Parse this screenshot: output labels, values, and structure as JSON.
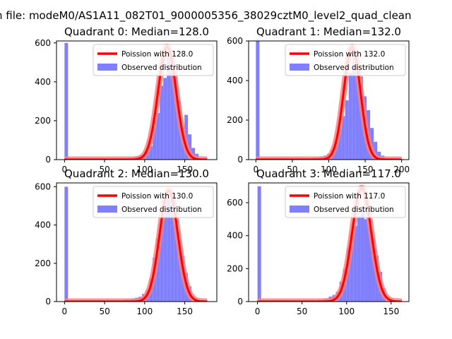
{
  "figure": {
    "suptitle": "n file: modeM0/AS1A11_082T01_9000005356_38029cztM0_level2_quad_clean"
  },
  "chart_data": [
    {
      "type": "bar",
      "title": "Quadrant 0: Median=128.0",
      "xlim": [
        -10,
        190
      ],
      "ylim": [
        0,
        610
      ],
      "xticks": [
        0,
        50,
        100,
        150
      ],
      "yticks": [
        0,
        200,
        400,
        600
      ],
      "legend": {
        "placement": "top-right",
        "line_label": "Poission with 128.0",
        "bar_label": "Observed distribution"
      },
      "series_poisson": {
        "name": "Poission with 128.0",
        "mean": 128.0,
        "peak": 580,
        "x_range": [
          0,
          178
        ]
      },
      "hist": {
        "bin_width": 4.4,
        "x": [
          0,
          79.2,
          83.6,
          88,
          92.4,
          96.8,
          101.2,
          105.6,
          110,
          114.4,
          118.8,
          123.2,
          127.6,
          132,
          136.4,
          140.8,
          145.2,
          149.6,
          154,
          158.4,
          162.8
        ],
        "values": [
          600,
          10,
          10,
          15,
          20,
          25,
          40,
          70,
          200,
          240,
          380,
          420,
          540,
          480,
          460,
          300,
          170,
          230,
          130,
          60,
          30
        ]
      }
    },
    {
      "type": "bar",
      "title": "Quadrant 1: Median=132.0",
      "xlim": [
        -10,
        210
      ],
      "ylim": [
        0,
        600
      ],
      "xticks": [
        0,
        50,
        100,
        150,
        200
      ],
      "yticks": [
        0,
        200,
        400,
        600
      ],
      "legend": {
        "placement": "top-right",
        "line_label": "Poission with 132.0",
        "bar_label": "Observed distribution"
      },
      "series_poisson": {
        "name": "Poission with 132.0",
        "mean": 132.0,
        "peak": 570,
        "x_range": [
          0,
          200
        ]
      },
      "hist": {
        "bin_width": 4.9,
        "x": [
          0,
          73.5,
          78.4,
          83.3,
          88.2,
          93.1,
          98,
          102.9,
          107.8,
          112.7,
          117.6,
          122.5,
          127.4,
          132.3,
          137.2,
          142.1,
          147,
          151.9,
          156.8,
          161.7,
          166.6,
          171.5
        ],
        "values": [
          600,
          5,
          10,
          10,
          15,
          20,
          30,
          50,
          80,
          150,
          220,
          300,
          440,
          550,
          470,
          420,
          320,
          250,
          160,
          90,
          40,
          20
        ]
      }
    },
    {
      "type": "bar",
      "title": "Quadrant 2: Median=130.0",
      "xlim": [
        -10,
        190
      ],
      "ylim": [
        0,
        620
      ],
      "xticks": [
        0,
        50,
        100,
        150
      ],
      "yticks": [
        0,
        200,
        400,
        600
      ],
      "legend": {
        "placement": "top-right",
        "line_label": "Poission with 130.0",
        "bar_label": "Observed distribution"
      },
      "series_poisson": {
        "name": "Poission with 130.0",
        "mean": 130.0,
        "peak": 580,
        "x_range": [
          0,
          178
        ]
      },
      "hist": {
        "bin_width": 4.4,
        "x": [
          0,
          74.8,
          79.2,
          83.6,
          88,
          92.4,
          96.8,
          101.2,
          105.6,
          110,
          114.4,
          118.8,
          123.2,
          127.6,
          132,
          136.4,
          140.8,
          145.2,
          149.6,
          154
        ],
        "values": [
          600,
          10,
          10,
          15,
          20,
          25,
          40,
          60,
          120,
          230,
          330,
          420,
          500,
          540,
          470,
          400,
          330,
          240,
          150,
          80
        ]
      }
    },
    {
      "type": "bar",
      "title": "Quadrant 3: Median=117.0",
      "xlim": [
        -10,
        170
      ],
      "ylim": [
        0,
        720
      ],
      "xticks": [
        0,
        50,
        100,
        150
      ],
      "yticks": [
        0,
        200,
        400,
        600
      ],
      "legend": {
        "placement": "top-right",
        "line_label": "Poission with 117.0",
        "bar_label": "Observed distribution"
      },
      "series_poisson": {
        "name": "Poission with 117.0",
        "mean": 117.0,
        "peak": 690,
        "x_range": [
          0,
          162
        ]
      },
      "hist": {
        "bin_width": 4.0,
        "x": [
          0,
          68,
          72,
          76,
          80,
          84,
          88,
          92,
          96,
          100,
          104,
          108,
          112,
          116,
          120,
          124,
          128,
          132,
          136,
          140
        ],
        "values": [
          700,
          10,
          15,
          20,
          30,
          40,
          60,
          120,
          200,
          320,
          400,
          460,
          520,
          580,
          500,
          460,
          380,
          280,
          180,
          80
        ]
      }
    }
  ],
  "colors": {
    "bar_fill": "#8080ff",
    "poisson_line": "#ff0000",
    "poisson_halo": "#ff8080",
    "axis": "#000000"
  }
}
